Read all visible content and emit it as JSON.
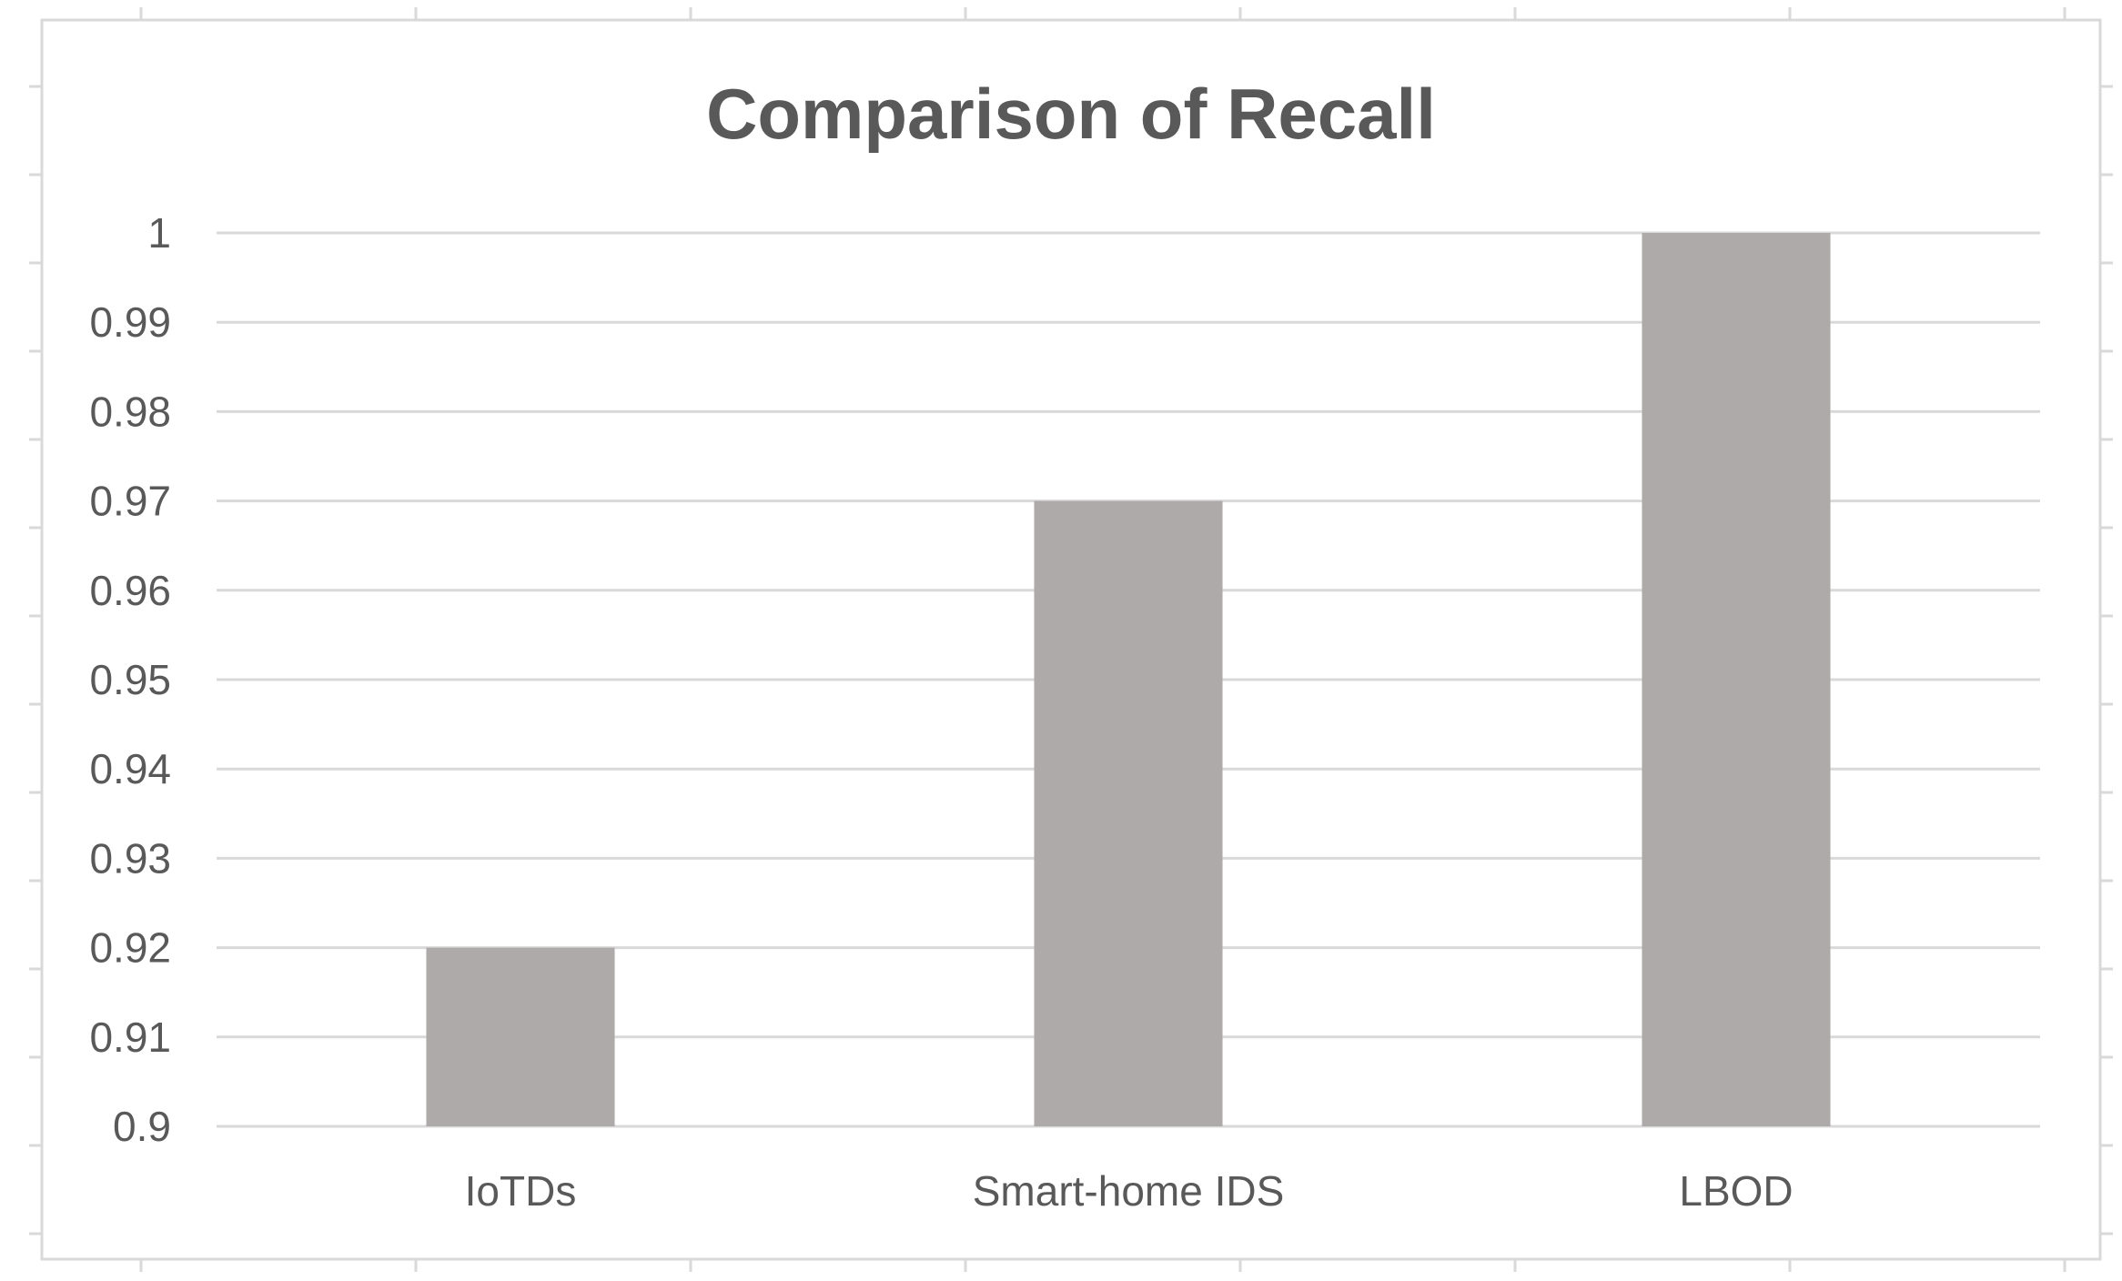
{
  "chart_data": {
    "type": "bar",
    "title": "Comparison of Recall",
    "xlabel": "",
    "ylabel": "",
    "categories": [
      "IoTDs",
      "Smart-home IDS",
      "LBOD"
    ],
    "series": [
      {
        "values": [
          0.92,
          0.97,
          1.0
        ],
        "color": "#aeaaaa"
      }
    ],
    "ylim": [
      0.9,
      1.0
    ],
    "yticks": [
      "0.9",
      "0.91",
      "0.92",
      "0.93",
      "0.94",
      "0.95",
      "0.96",
      "0.97",
      "0.98",
      "0.99",
      "1"
    ],
    "grid": true,
    "legend": "none"
  }
}
